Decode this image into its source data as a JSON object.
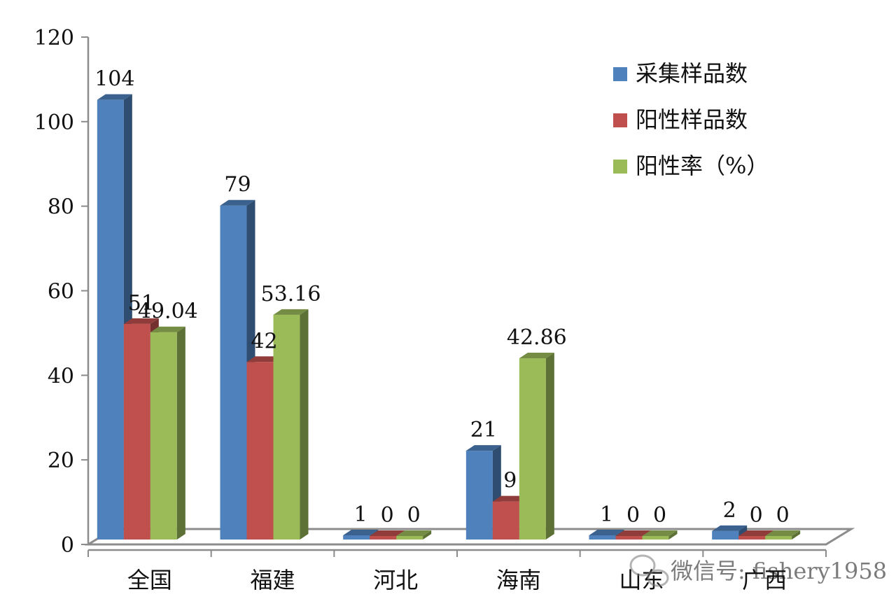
{
  "chart_data": {
    "type": "bar",
    "categories": [
      "全国",
      "福建",
      "河北",
      "海南",
      "山东",
      "广西"
    ],
    "series": [
      {
        "name": "采集样品数",
        "values": [
          104,
          79,
          1,
          21,
          1,
          2
        ],
        "labels": [
          "104",
          "79",
          "1",
          "21",
          "1",
          "2"
        ],
        "color": "#4F81BD"
      },
      {
        "name": "阳性样品数",
        "values": [
          51,
          42,
          0,
          9,
          0,
          0
        ],
        "labels": [
          "51",
          "42",
          "0",
          "9",
          "0",
          "0"
        ],
        "color": "#C0504D"
      },
      {
        "name": "阳性率（%）",
        "values": [
          49.04,
          53.16,
          0,
          42.86,
          0,
          0
        ],
        "labels": [
          "49.04",
          "53.16",
          "0",
          "42.86",
          "0",
          "0"
        ],
        "color": "#9BBB59"
      }
    ],
    "ylim": [
      0,
      120
    ],
    "yticks": [
      "0",
      "20",
      "40",
      "60",
      "80",
      "100",
      "120"
    ],
    "legend_position": "top-right",
    "grid": false,
    "style": "3d-clustered-column"
  },
  "watermark": "微信号: fishery1958"
}
